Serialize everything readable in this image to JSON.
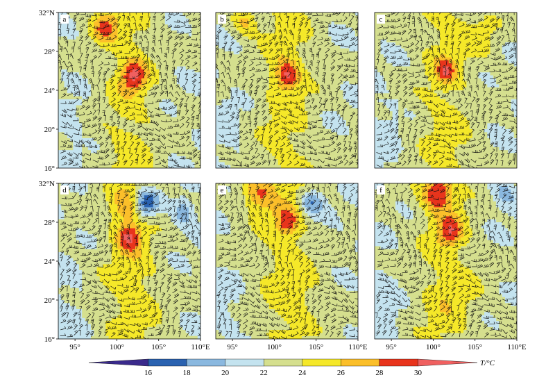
{
  "chart_data": {
    "type": "heatmap",
    "title": "",
    "variable_label": "T/°C",
    "panels": [
      {
        "label": "a"
      },
      {
        "label": "b"
      },
      {
        "label": "c"
      },
      {
        "label": "d"
      },
      {
        "label": "e"
      },
      {
        "label": "f"
      }
    ],
    "x_range": [
      93,
      110
    ],
    "y_range": [
      16,
      32
    ],
    "x_ticks": [
      {
        "value": 95,
        "label": "95°"
      },
      {
        "value": 100,
        "label": "100°"
      },
      {
        "value": 105,
        "label": "105°"
      },
      {
        "value": 110,
        "label": "110°E"
      }
    ],
    "y_ticks": [
      {
        "value": 16,
        "label": "16°"
      },
      {
        "value": 20,
        "label": "20°"
      },
      {
        "value": 24,
        "label": "24°"
      },
      {
        "value": 28,
        "label": "28°"
      },
      {
        "value": 32,
        "label": "32°N"
      }
    ],
    "colorbar": {
      "ticks": [
        "16",
        "18",
        "20",
        "22",
        "24",
        "26",
        "28",
        "30"
      ],
      "colors": [
        "#3a2a8c",
        "#2a62b0",
        "#8ab8df",
        "#c4e3ef",
        "#d5df8e",
        "#f5e829",
        "#fbbf2a",
        "#e8341c",
        "#f06060"
      ]
    },
    "overlay": "wind barbs",
    "grid": false
  }
}
